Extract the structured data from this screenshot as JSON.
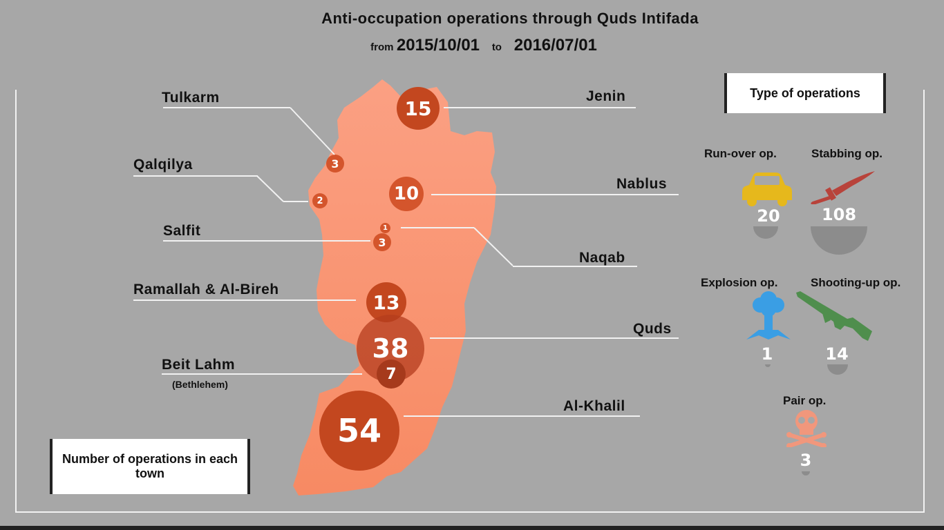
{
  "header": {
    "title": "Anti-occupation operations through Quds Intifada",
    "from_label": "from",
    "from_date": "2015/10/01",
    "to_label": "to",
    "to_date": "2016/07/01"
  },
  "towns": {
    "tulkarm": {
      "label": "Tulkarm",
      "count": "3"
    },
    "qalqilya": {
      "label": "Qalqilya",
      "count": "2"
    },
    "salfit": {
      "label": "Salfit",
      "count": "3"
    },
    "ramallah": {
      "label": "Ramallah & Al-Bireh",
      "count": "13"
    },
    "beit_lahm": {
      "label": "Beit Lahm",
      "sublabel": "(Bethlehem)",
      "count": "7"
    },
    "jenin": {
      "label": "Jenin",
      "count": "15"
    },
    "nablus": {
      "label": "Nablus",
      "count": "10"
    },
    "naqab": {
      "label": "Naqab",
      "count": "1"
    },
    "quds": {
      "label": "Quds",
      "count": "38"
    },
    "al_khalil": {
      "label": "Al-Khalil",
      "count": "54"
    }
  },
  "legend_box": {
    "text": "Number of operations in each town"
  },
  "types_box": {
    "text": "Type of operations"
  },
  "operation_types": {
    "run_over": {
      "label": "Run-over op.",
      "count": "20",
      "icon": "car-icon"
    },
    "stabbing": {
      "label": "Stabbing op.",
      "count": "108",
      "icon": "knife-icon"
    },
    "explosion": {
      "label": "Explosion op.",
      "count": "1",
      "icon": "explosion-icon"
    },
    "shooting": {
      "label": "Shooting-up op.",
      "count": "14",
      "icon": "rifle-icon"
    },
    "pair": {
      "label": "Pair op.",
      "count": "3",
      "icon": "skull-icon"
    }
  },
  "colors": {
    "background": "#a7a7a7",
    "map_fill": "#f99a76",
    "circle_dark": "#c3471f",
    "circle_mid": "#d4552c",
    "car_yellow": "#e6b81c",
    "knife_red": "#b8433b",
    "explosion_blue": "#3a9ee4",
    "rifle_green": "#4f8e4d",
    "skull_salmon": "#f1977c",
    "bulb_grey": "#8c8c8c"
  }
}
